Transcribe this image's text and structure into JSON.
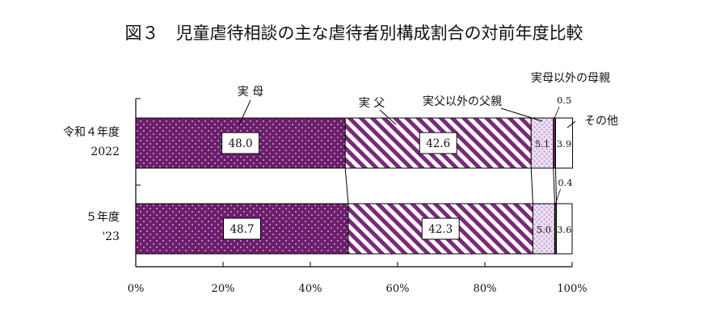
{
  "title": "図３　児童虐待相談の主な虐待者別構成割合の対前年度比較",
  "chart_data": {
    "type": "bar",
    "orientation": "horizontal",
    "stacked": true,
    "percent": true,
    "categories": [
      {
        "line1": "令和４年度",
        "line2": "2022"
      },
      {
        "line1": "５年度",
        "line2": "'23"
      }
    ],
    "series": [
      {
        "name": "実 母",
        "values": [
          48.0,
          48.7
        ],
        "labels": [
          "48.0",
          "48.7"
        ],
        "color": "#6b1e6b"
      },
      {
        "name": "実 父",
        "values": [
          42.6,
          42.3
        ],
        "labels": [
          "42.6",
          "42.3"
        ],
        "color": "#7a2a7a"
      },
      {
        "name": "実父以外の父親",
        "values": [
          5.1,
          5.0
        ],
        "labels": [
          "5.1",
          "5.0"
        ],
        "color": "#c9a8dd"
      },
      {
        "name": "実母以外の母親",
        "values": [
          0.5,
          0.4
        ],
        "labels": [
          "0.5",
          "0.4"
        ],
        "color": "#6b1e6b"
      },
      {
        "name": "その他",
        "values": [
          3.9,
          3.6
        ],
        "labels": [
          "3.9",
          "3.6"
        ],
        "color": "#ffffff"
      }
    ],
    "xlim": [
      0,
      100
    ],
    "xticks": [
      "0%",
      "20%",
      "40%",
      "60%",
      "80%",
      "100%"
    ],
    "grid": false
  }
}
